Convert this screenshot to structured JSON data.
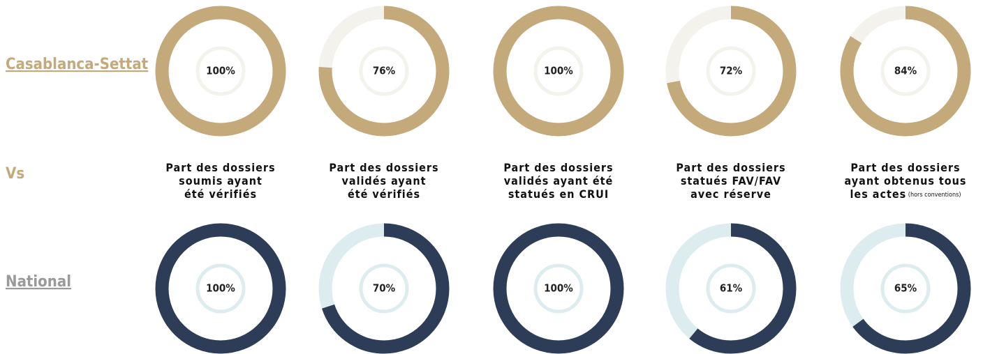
{
  "chart_data": {
    "type": "donut",
    "categories": [
      "Part des dossiers\nsoumis ayant\nété vérifiés",
      "Part des dossiers\nvalidés ayant\nété vérifiés",
      "Part des dossiers\nvalidés ayant été\nstatués en CRUI",
      "Part des dossiers\nstatués FAV/FAV\navec réserve",
      "Part des dossiers\nayant obtenus tous\nles actes"
    ],
    "annotations": [
      {
        "category": 4,
        "text": "(hors conventions)"
      }
    ],
    "separator": "Vs",
    "series": [
      {
        "name": "Casablanca-Settat",
        "color": "#c4a97a",
        "track_color": "#f4f2ec",
        "label_color": "#c4a97a",
        "values": [
          100,
          76,
          100,
          72,
          84
        ],
        "value_labels": [
          "100%",
          "76%",
          "100%",
          "72%",
          "84%"
        ]
      },
      {
        "name": "National",
        "color": "#2e3d57",
        "track_color": "#ddedef",
        "label_color": "#9a9a9a",
        "values": [
          100,
          70,
          100,
          61,
          65
        ],
        "value_labels": [
          "100%",
          "70%",
          "100%",
          "61%",
          "65%"
        ]
      }
    ]
  }
}
